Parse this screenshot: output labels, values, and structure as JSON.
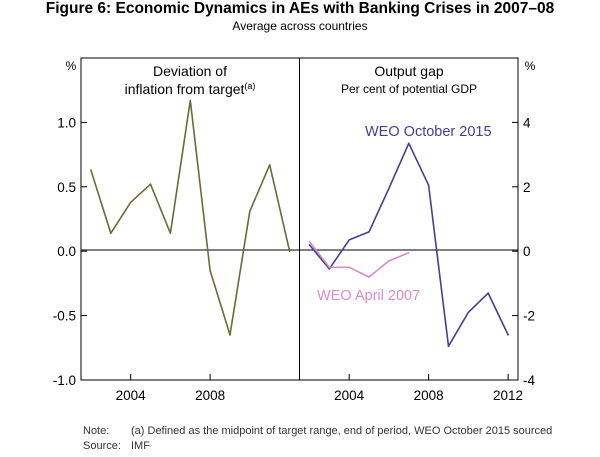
{
  "title": "Figure 6: Economic Dynamics in AEs with Banking Crises in 2007–08",
  "subtitle": "Average across countries",
  "notes": {
    "note_label": "Note:",
    "note_text": "(a) Defined as the midpoint of target range, end of period, WEO October 2015 sourced",
    "source_label": "Source:",
    "source_text": "IMF"
  },
  "chart_data": [
    {
      "type": "line",
      "title": "Deviation of",
      "title_line2": "inflation from target",
      "title_superscript": "(a)",
      "ylabel": "%",
      "ylim": [
        -1.0,
        1.5
      ],
      "yticks": [
        -1.0,
        -0.5,
        0.0,
        0.5,
        1.0
      ],
      "ytick_labels": [
        "-1.0",
        "-0.5",
        "0.0",
        "0.5",
        "1.0"
      ],
      "xlim": [
        2001.5,
        2012.5
      ],
      "xticks": [
        2004,
        2008
      ],
      "xtick_labels": [
        "2004",
        "2008"
      ],
      "series": [
        {
          "name": "Deviation of inflation from target",
          "color": "#6b6b35",
          "x": [
            2002,
            2003,
            2004,
            2005,
            2006,
            2007,
            2008,
            2009,
            2010,
            2011,
            2012
          ],
          "values": [
            0.63,
            0.14,
            0.38,
            0.52,
            0.14,
            1.17,
            -0.15,
            -0.65,
            0.31,
            0.67,
            0.0
          ]
        }
      ]
    },
    {
      "type": "line",
      "title": "Output gap",
      "subtitle": "Per cent of potential GDP",
      "ylabel": "%",
      "ylim": [
        -4,
        6
      ],
      "yticks": [
        -4,
        -2,
        0,
        2,
        4
      ],
      "ytick_labels": [
        "-4",
        "-2",
        "0",
        "2",
        "4"
      ],
      "xlim": [
        2001.5,
        2012.5
      ],
      "xticks": [
        2004,
        2008,
        2012
      ],
      "xtick_labels": [
        "2004",
        "2008",
        "2012"
      ],
      "series": [
        {
          "name": "WEO October 2015",
          "color": "#4b3a99",
          "x": [
            2002,
            2003,
            2004,
            2005,
            2006,
            2007,
            2008,
            2009,
            2010,
            2011,
            2012
          ],
          "values": [
            0.2,
            -0.55,
            0.35,
            0.6,
            1.95,
            3.35,
            2.05,
            -2.95,
            -1.9,
            -1.3,
            -2.6
          ]
        },
        {
          "name": "WEO April 2007",
          "color": "#d98cc8",
          "x": [
            2002,
            2003,
            2004,
            2005,
            2006,
            2007
          ],
          "values": [
            0.3,
            -0.5,
            -0.5,
            -0.8,
            -0.3,
            -0.05
          ]
        }
      ]
    }
  ]
}
